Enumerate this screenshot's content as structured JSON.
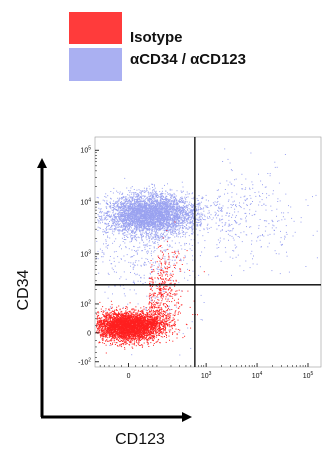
{
  "legend": {
    "entries": [
      {
        "label": "Isotype",
        "color": "#ff3b3b"
      },
      {
        "label": "αCD34 / αCD123",
        "color": "#aab0f2"
      }
    ]
  },
  "chart_data": {
    "type": "scatter",
    "xlabel": "CD123",
    "ylabel": "CD34",
    "x_scale": "biexponential",
    "y_scale": "biexponential",
    "x_ticks": [
      {
        "value": 0,
        "base": "0",
        "exp": ""
      },
      {
        "value": 1000,
        "base": "10",
        "exp": "3"
      },
      {
        "value": 10000,
        "base": "10",
        "exp": "4"
      },
      {
        "value": 100000,
        "base": "10",
        "exp": "5"
      }
    ],
    "y_ticks": [
      {
        "value": -100,
        "base": "-10",
        "exp": "2"
      },
      {
        "value": 0,
        "base": "0",
        "exp": ""
      },
      {
        "value": 100,
        "base": "10",
        "exp": "2"
      },
      {
        "value": 1000,
        "base": "10",
        "exp": "3"
      },
      {
        "value": 10000,
        "base": "10",
        "exp": "4"
      },
      {
        "value": 100000,
        "base": "10",
        "exp": "5"
      }
    ],
    "gates": {
      "x": 600,
      "y": 250
    },
    "series": [
      {
        "name": "Isotype",
        "color": "#ff2020",
        "population": {
          "center_x": 0,
          "center_y": 20,
          "events": "~5000"
        }
      },
      {
        "name": "αCD34 / αCD123",
        "color": "#9aa2f0",
        "population": {
          "center_x": 50,
          "center_y": 6000,
          "events": "~5000"
        }
      }
    ],
    "grid": false
  }
}
